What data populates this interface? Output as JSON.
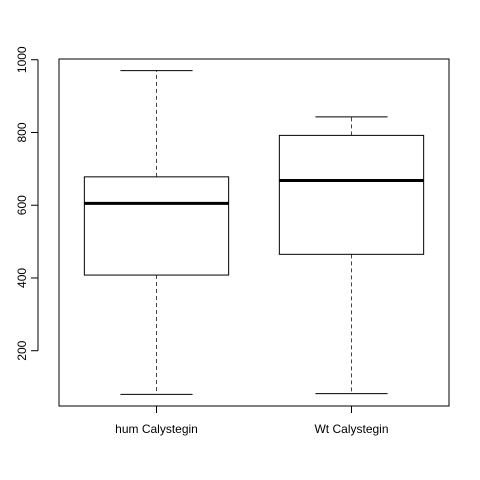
{
  "chart_data": {
    "type": "boxplot",
    "title": "",
    "xlabel": "",
    "ylabel": "",
    "categories": [
      "hum Calystegin",
      "Wt Calystegin"
    ],
    "boxes": [
      {
        "name": "hum Calystegin",
        "min": 80,
        "q1": 408,
        "median": 605,
        "q3": 678,
        "max": 970
      },
      {
        "name": "Wt Calystegin",
        "min": 82,
        "q1": 465,
        "median": 668,
        "q3": 792,
        "max": 843
      }
    ],
    "ylim": [
      48,
      1002
    ],
    "yticks": [
      200,
      400,
      600,
      800,
      1000
    ],
    "grid": false,
    "colors": {
      "box_fill": "#ffffff",
      "line": "#000000",
      "whisker": "#444444"
    }
  }
}
